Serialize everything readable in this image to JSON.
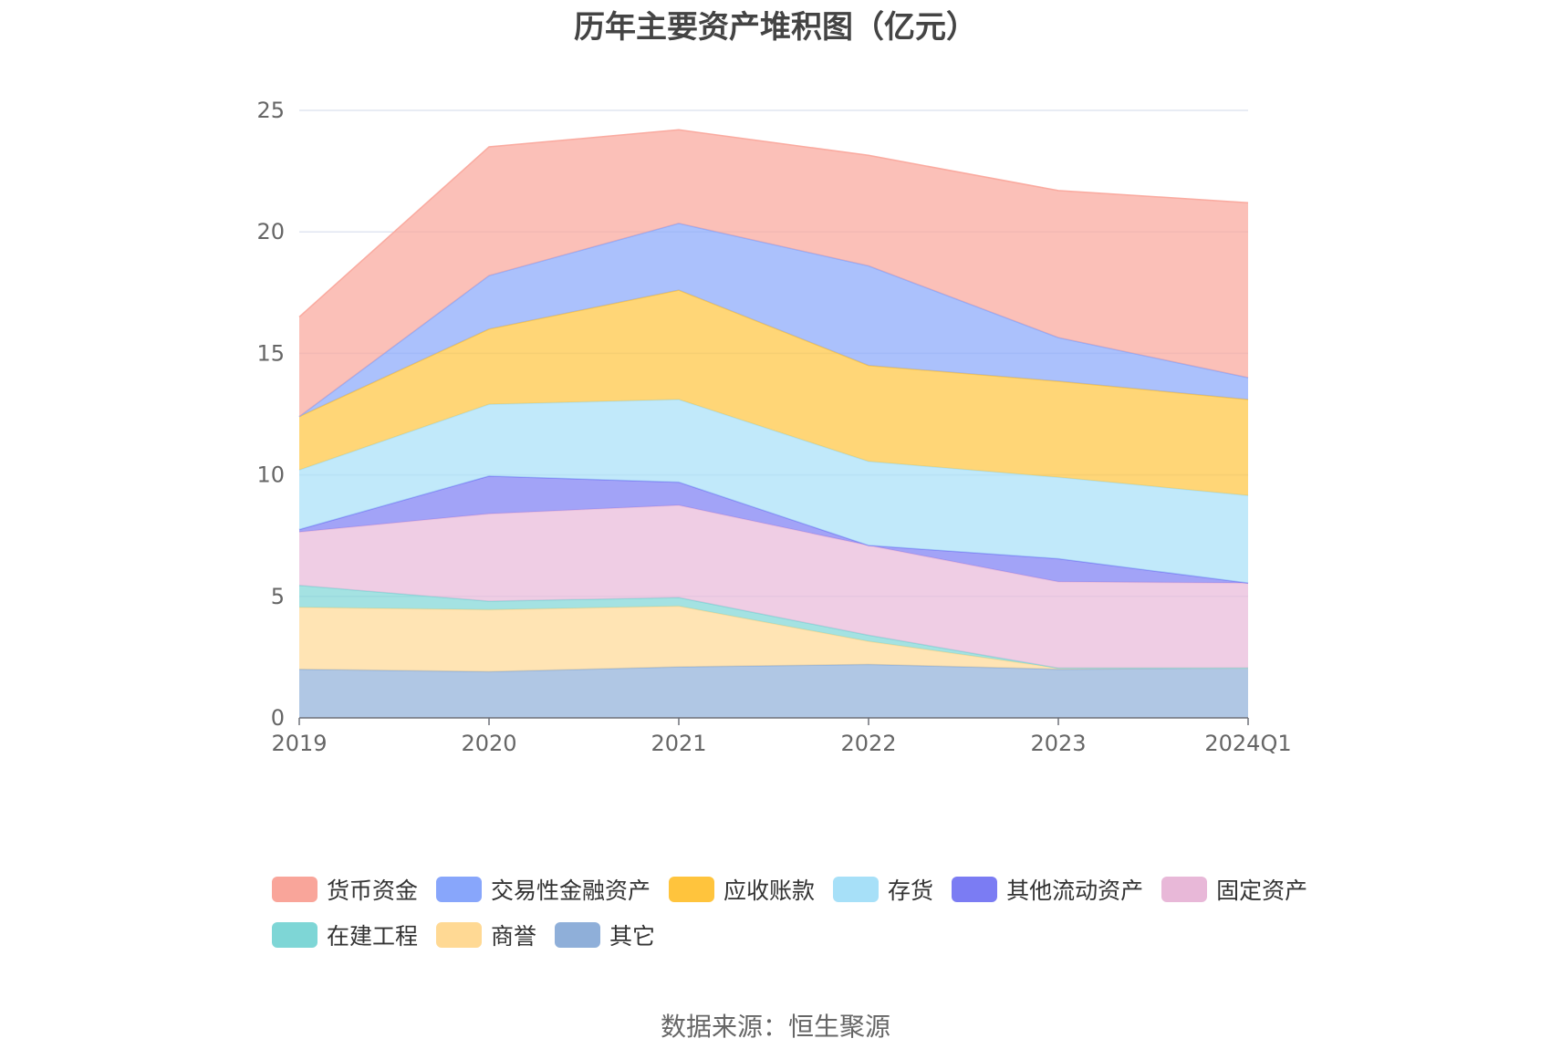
{
  "chart_data": {
    "type": "area",
    "stacked": true,
    "title": "历年主要资产堆积图（亿元）",
    "categories": [
      "2019",
      "2020",
      "2021",
      "2022",
      "2023",
      "2024Q1"
    ],
    "ylim": [
      0,
      25
    ],
    "yticks": [
      0,
      5,
      10,
      15,
      20,
      25
    ],
    "grid": true,
    "legend_position": "bottom",
    "series": [
      {
        "name": "其它",
        "color": "#8fafd9",
        "values": [
          2.0,
          1.9,
          2.1,
          2.2,
          2.0,
          2.05
        ]
      },
      {
        "name": "商誉",
        "color": "#ffd994",
        "values": [
          2.55,
          2.55,
          2.5,
          0.95,
          0.05,
          0.0
        ]
      },
      {
        "name": "在建工程",
        "color": "#7ed6d6",
        "values": [
          0.9,
          0.35,
          0.35,
          0.25,
          0.0,
          0.0
        ]
      },
      {
        "name": "固定资产",
        "color": "#e8b8d8",
        "values": [
          2.2,
          3.6,
          3.8,
          3.7,
          3.55,
          3.5
        ]
      },
      {
        "name": "其他流动资产",
        "color": "#7b7cf3",
        "values": [
          0.1,
          1.55,
          0.95,
          0.0,
          0.95,
          0.0
        ]
      },
      {
        "name": "存货",
        "color": "#a7e0f8",
        "values": [
          2.45,
          2.95,
          3.4,
          3.45,
          3.35,
          3.6
        ]
      },
      {
        "name": "应收账款",
        "color": "#ffc43d",
        "values": [
          2.2,
          3.1,
          4.5,
          3.95,
          3.95,
          3.95
        ]
      },
      {
        "name": "交易性金融资产",
        "color": "#88a6fb",
        "values": [
          0.0,
          2.2,
          2.75,
          4.1,
          1.8,
          0.9
        ]
      },
      {
        "name": "货币资金",
        "color": "#f9a59a",
        "values": [
          4.1,
          5.3,
          3.85,
          4.55,
          6.05,
          7.2
        ]
      }
    ],
    "legend_order": [
      "货币资金",
      "交易性金融资产",
      "应收账款",
      "存货",
      "其他流动资产",
      "固定资产",
      "在建工程",
      "商誉",
      "其它"
    ]
  },
  "source_note": "数据来源：恒生聚源"
}
